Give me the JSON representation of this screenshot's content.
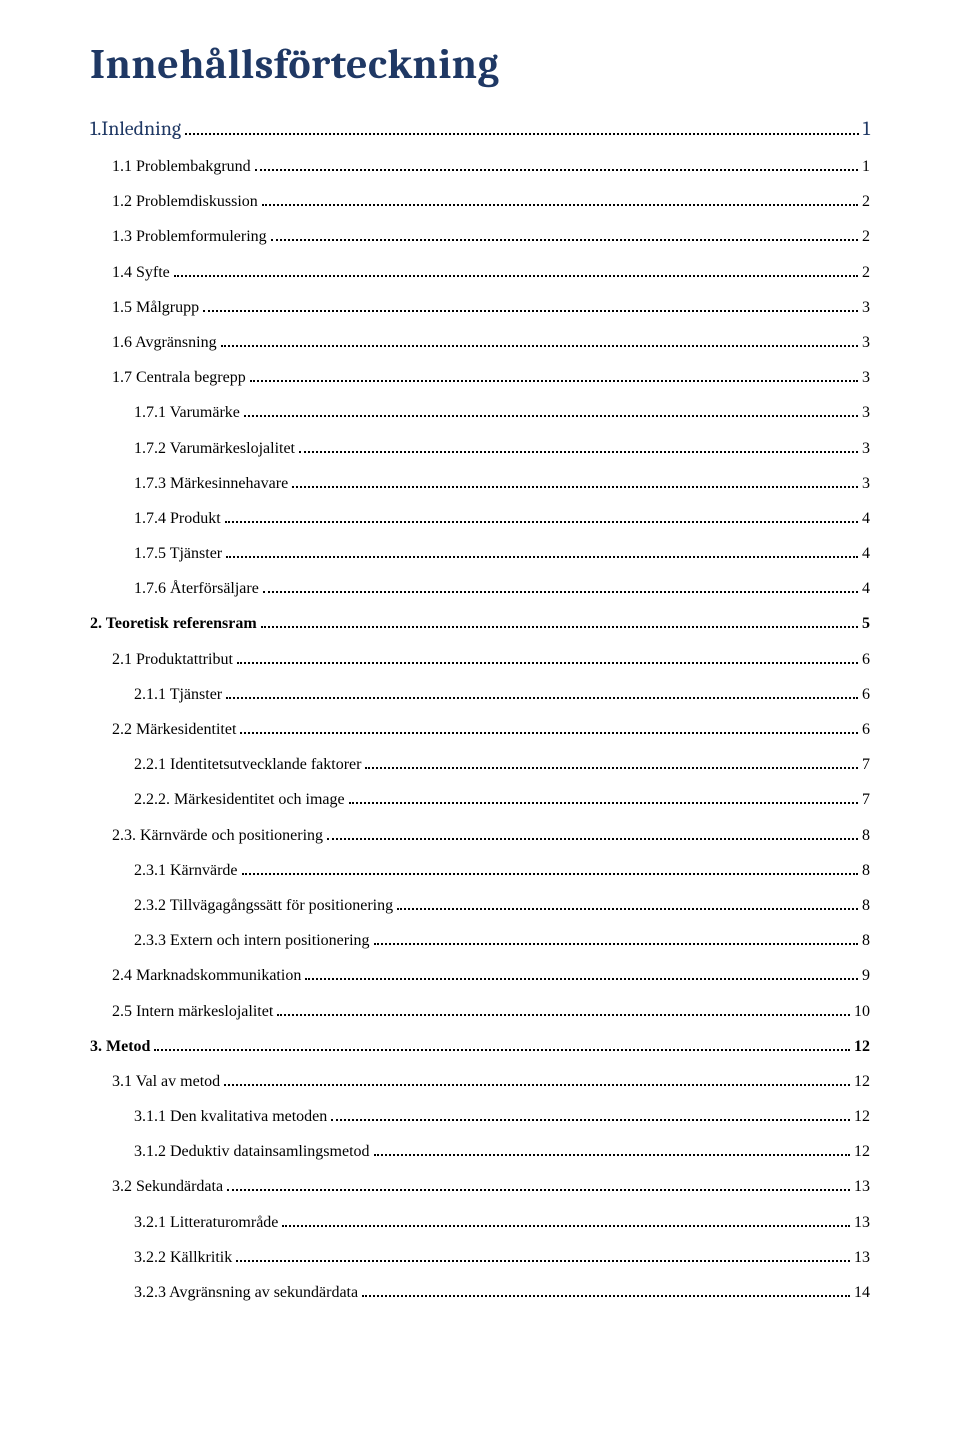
{
  "title": "Innehållsförteckning",
  "colors": {
    "heading": "#1f3864",
    "text": "#000000",
    "background": "#ffffff"
  },
  "typography": {
    "title_font": "Cambria",
    "title_size_pt": 32,
    "body_font": "Times New Roman",
    "body_size_pt": 12
  },
  "entries": [
    {
      "label": "1.Inledning",
      "page": "1",
      "indent": 0,
      "style": "heading"
    },
    {
      "label": "1.1 Problembakgrund",
      "page": "1",
      "indent": 1,
      "style": "normal"
    },
    {
      "label": "1.2 Problemdiskussion",
      "page": "2",
      "indent": 1,
      "style": "normal"
    },
    {
      "label": "1.3 Problemformulering",
      "page": "2",
      "indent": 1,
      "style": "normal"
    },
    {
      "label": "1.4 Syfte",
      "page": "2",
      "indent": 1,
      "style": "normal"
    },
    {
      "label": "1.5 Målgrupp",
      "page": "3",
      "indent": 1,
      "style": "normal"
    },
    {
      "label": "1.6 Avgränsning",
      "page": "3",
      "indent": 1,
      "style": "normal"
    },
    {
      "label": "1.7 Centrala begrepp",
      "page": "3",
      "indent": 1,
      "style": "normal"
    },
    {
      "label": "1.7.1 Varumärke",
      "page": "3",
      "indent": 2,
      "style": "normal"
    },
    {
      "label": "1.7.2 Varumärkeslojalitet",
      "page": "3",
      "indent": 2,
      "style": "normal"
    },
    {
      "label": "1.7.3 Märkesinnehavare",
      "page": "3",
      "indent": 2,
      "style": "normal"
    },
    {
      "label": "1.7.4 Produkt",
      "page": "4",
      "indent": 2,
      "style": "normal"
    },
    {
      "label": "1.7.5 Tjänster",
      "page": "4",
      "indent": 2,
      "style": "normal"
    },
    {
      "label": "1.7.6 Återförsäljare",
      "page": "4",
      "indent": 2,
      "style": "normal"
    },
    {
      "label": "2. Teoretisk referensram",
      "page": "5",
      "indent": 0,
      "style": "bold"
    },
    {
      "label": "2.1 Produktattribut",
      "page": "6",
      "indent": 1,
      "style": "normal"
    },
    {
      "label": "2.1.1 Tjänster",
      "page": "6",
      "indent": 2,
      "style": "normal"
    },
    {
      "label": "2.2 Märkesidentitet",
      "page": "6",
      "indent": 1,
      "style": "normal"
    },
    {
      "label": "2.2.1 Identitetsutvecklande faktorer",
      "page": "7",
      "indent": 2,
      "style": "normal"
    },
    {
      "label": "2.2.2. Märkesidentitet och image",
      "page": "7",
      "indent": 2,
      "style": "normal"
    },
    {
      "label": "2.3. Kärnvärde och positionering",
      "page": "8",
      "indent": 1,
      "style": "normal"
    },
    {
      "label": "2.3.1 Kärnvärde",
      "page": "8",
      "indent": 2,
      "style": "normal"
    },
    {
      "label": "2.3.2 Tillvägagångssätt för positionering",
      "page": "8",
      "indent": 2,
      "style": "normal"
    },
    {
      "label": "2.3.3 Extern och intern positionering",
      "page": "8",
      "indent": 2,
      "style": "normal"
    },
    {
      "label": "2.4 Marknadskommunikation",
      "page": "9",
      "indent": 1,
      "style": "normal"
    },
    {
      "label": "2.5 Intern märkeslojalitet",
      "page": "10",
      "indent": 1,
      "style": "normal"
    },
    {
      "label": "3. Metod",
      "page": "12",
      "indent": 0,
      "style": "bold"
    },
    {
      "label": "3.1 Val av metod",
      "page": "12",
      "indent": 1,
      "style": "normal"
    },
    {
      "label": "3.1.1 Den kvalitativa metoden",
      "page": "12",
      "indent": 2,
      "style": "normal"
    },
    {
      "label": "3.1.2 Deduktiv datainsamlingsmetod",
      "page": "12",
      "indent": 2,
      "style": "normal"
    },
    {
      "label": "3.2 Sekundärdata",
      "page": "13",
      "indent": 1,
      "style": "normal"
    },
    {
      "label": "3.2.1 Litteraturområde",
      "page": "13",
      "indent": 2,
      "style": "normal"
    },
    {
      "label": "3.2.2 Källkritik",
      "page": "13",
      "indent": 2,
      "style": "normal"
    },
    {
      "label": "3.2.3 Avgränsning av sekundärdata",
      "page": "14",
      "indent": 2,
      "style": "normal"
    }
  ]
}
